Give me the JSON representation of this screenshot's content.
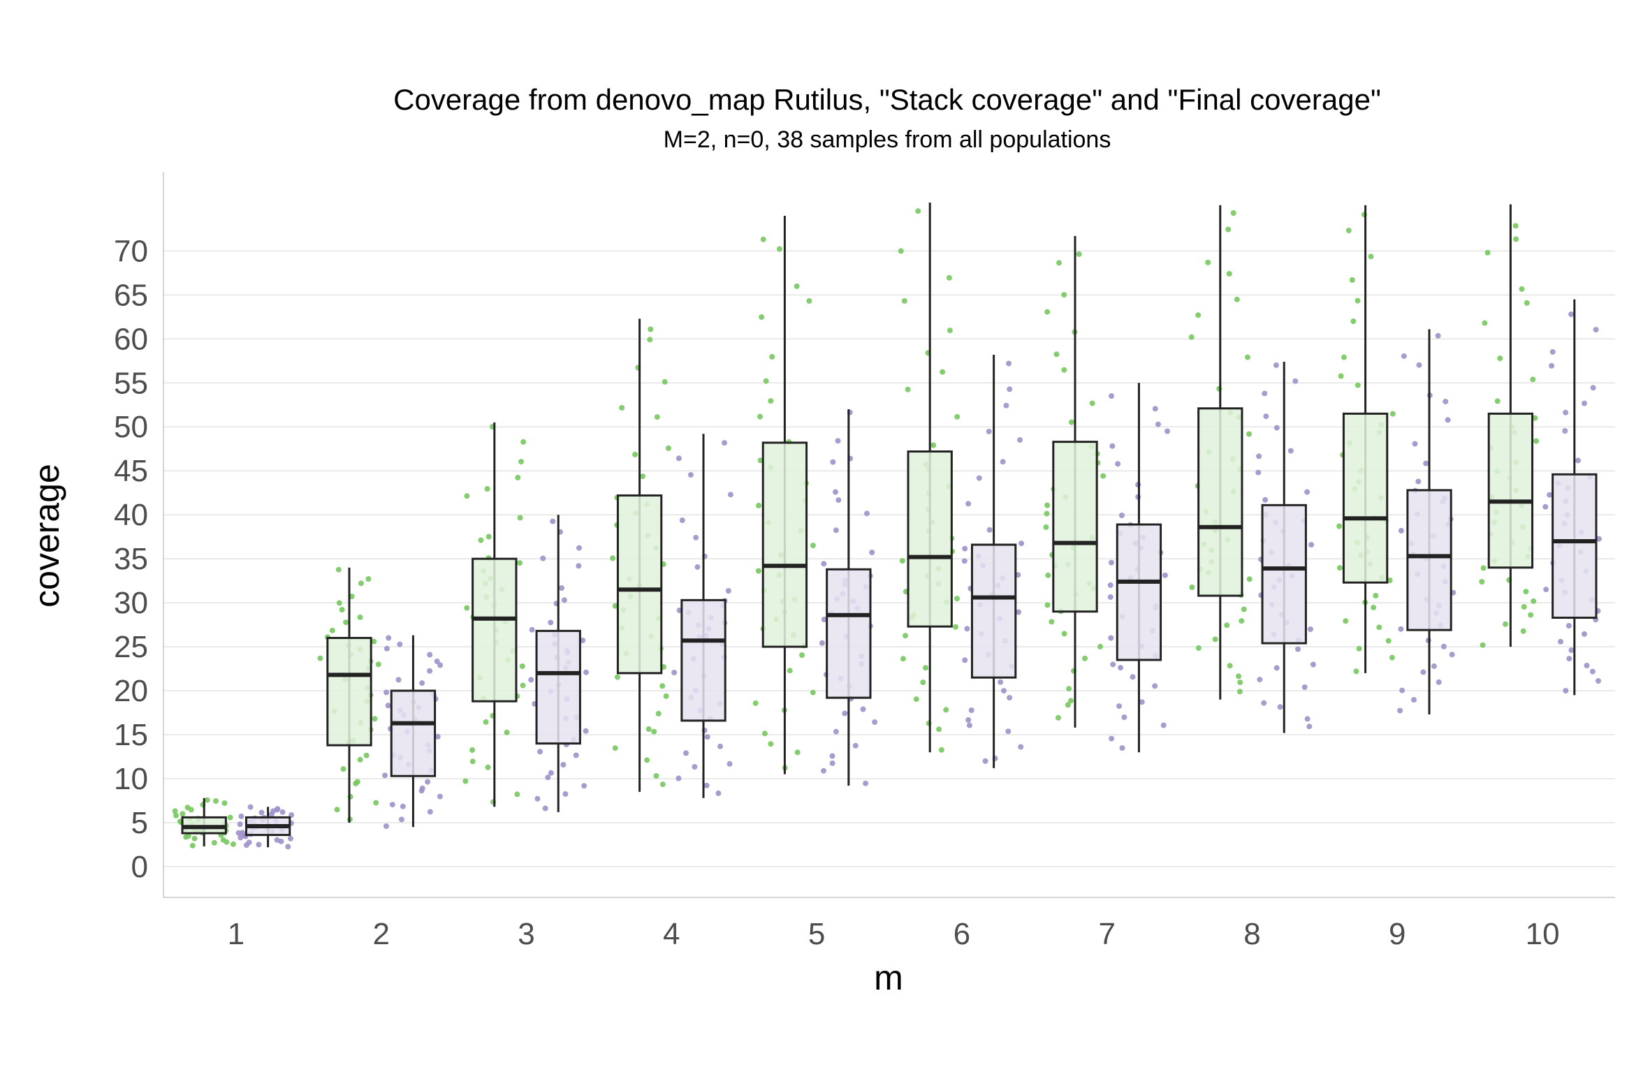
{
  "chart_data": {
    "type": "boxplot",
    "title": "Coverage from denovo_map Rutilus, \"Stack coverage\" and \"Final coverage\"",
    "subtitle": "M=2, n=0, 38 samples from all populations",
    "xlabel": "m",
    "ylabel": "coverage",
    "categories": [
      "1",
      "2",
      "3",
      "4",
      "5",
      "6",
      "7",
      "8",
      "9",
      "10"
    ],
    "y_ticks": [
      0,
      5,
      10,
      15,
      20,
      25,
      30,
      35,
      40,
      45,
      50,
      55,
      60,
      65,
      70
    ],
    "ylim": [
      -3.5,
      79
    ],
    "grid": true,
    "legend": "none",
    "series": [
      {
        "fill": "#e1f2dc",
        "point_color": "#77c85e",
        "boxes": [
          {
            "min": 2.3,
            "q1": 3.8,
            "median": 4.5,
            "q3": 5.6,
            "max": 7.8
          },
          {
            "min": 5.0,
            "q1": 13.8,
            "median": 21.8,
            "q3": 26.0,
            "max": 34.0
          },
          {
            "min": 6.8,
            "q1": 18.8,
            "median": 28.2,
            "q3": 35.0,
            "max": 50.5
          },
          {
            "min": 8.5,
            "q1": 22.0,
            "median": 31.5,
            "q3": 42.2,
            "max": 62.3
          },
          {
            "min": 10.5,
            "q1": 25.0,
            "median": 34.2,
            "q3": 48.2,
            "max": 74.0
          },
          {
            "min": 13.0,
            "q1": 27.3,
            "median": 35.2,
            "q3": 47.2,
            "max": 75.5
          },
          {
            "min": 15.8,
            "q1": 29.0,
            "median": 36.8,
            "q3": 48.3,
            "max": 71.7
          },
          {
            "min": 19.0,
            "q1": 30.8,
            "median": 38.6,
            "q3": 52.1,
            "max": 75.2
          },
          {
            "min": 22.0,
            "q1": 32.3,
            "median": 39.6,
            "q3": 51.5,
            "max": 75.2
          },
          {
            "min": 25.0,
            "q1": 34.0,
            "median": 41.5,
            "q3": 51.5,
            "max": 75.3
          }
        ]
      },
      {
        "fill": "#e6e3f1",
        "point_color": "#9e90c9",
        "boxes": [
          {
            "min": 2.2,
            "q1": 3.6,
            "median": 4.6,
            "q3": 5.6,
            "max": 6.8
          },
          {
            "min": 4.5,
            "q1": 10.3,
            "median": 16.3,
            "q3": 20.0,
            "max": 26.3
          },
          {
            "min": 6.2,
            "q1": 14.0,
            "median": 22.0,
            "q3": 26.8,
            "max": 40.0
          },
          {
            "min": 7.8,
            "q1": 16.6,
            "median": 25.7,
            "q3": 30.3,
            "max": 49.2
          },
          {
            "min": 9.2,
            "q1": 19.2,
            "median": 28.6,
            "q3": 33.8,
            "max": 52.0
          },
          {
            "min": 11.2,
            "q1": 21.5,
            "median": 30.6,
            "q3": 36.6,
            "max": 58.2
          },
          {
            "min": 13.0,
            "q1": 23.5,
            "median": 32.4,
            "q3": 38.9,
            "max": 55.0
          },
          {
            "min": 15.2,
            "q1": 25.4,
            "median": 33.9,
            "q3": 41.1,
            "max": 57.4
          },
          {
            "min": 17.3,
            "q1": 26.9,
            "median": 35.3,
            "q3": 42.8,
            "max": 61.1
          },
          {
            "min": 19.5,
            "q1": 28.3,
            "median": 37.0,
            "q3": 44.6,
            "max": 64.5
          }
        ]
      }
    ]
  }
}
